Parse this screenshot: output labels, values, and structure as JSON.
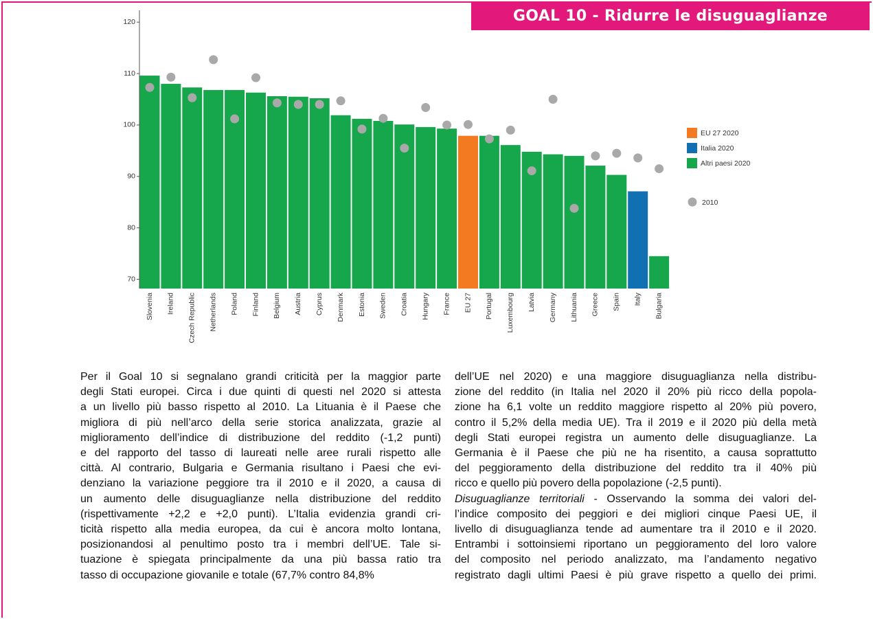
{
  "header": {
    "title": "GOAL 10 - Ridurre le disuguaglianze"
  },
  "chart_data": {
    "type": "bar",
    "categories": [
      "Slovenia",
      "Ireland",
      "Czech Republic",
      "Netherlands",
      "Poland",
      "Finland",
      "Belgium",
      "Austria",
      "Cyprus",
      "Denmark",
      "Estonia",
      "Sweden",
      "Croatia",
      "Hungary",
      "France",
      "EU 27",
      "Portugal",
      "Luxembourg",
      "Latvia",
      "Germany",
      "Lithuania",
      "Greece",
      "Spain",
      "Italy",
      "Bulgaria"
    ],
    "bars": {
      "values": [
        109.6,
        108.0,
        107.3,
        106.8,
        106.8,
        106.3,
        105.6,
        105.5,
        105.2,
        101.9,
        101.2,
        100.8,
        100.1,
        99.6,
        99.3,
        97.9,
        97.9,
        96.1,
        94.8,
        94.3,
        94.0,
        92.1,
        90.3,
        87.1,
        74.5
      ],
      "colors": [
        "#16a64c",
        "#16a64c",
        "#16a64c",
        "#16a64c",
        "#16a64c",
        "#16a64c",
        "#16a64c",
        "#16a64c",
        "#16a64c",
        "#16a64c",
        "#16a64c",
        "#16a64c",
        "#16a64c",
        "#16a64c",
        "#16a64c",
        "#f47a21",
        "#16a64c",
        "#16a64c",
        "#16a64c",
        "#16a64c",
        "#16a64c",
        "#16a64c",
        "#16a64c",
        "#1170b1",
        "#16a64c"
      ]
    },
    "points": {
      "name": "2010",
      "color": "#a9a9a9",
      "values": [
        107.3,
        109.3,
        105.3,
        112.7,
        101.2,
        109.2,
        104.3,
        104.0,
        104.0,
        104.7,
        99.2,
        101.3,
        95.5,
        103.4,
        100.0,
        100.1,
        97.3,
        99.0,
        91.1,
        105.0,
        83.8,
        94.0,
        94.5,
        93.6,
        91.5
      ]
    },
    "legend": [
      {
        "name": "EU 27 2020",
        "color": "#f47a21"
      },
      {
        "name": "Italia 2020",
        "color": "#1170b1"
      },
      {
        "name": "Altri paesi 2020",
        "color": "#16a64c"
      }
    ],
    "ylim": [
      68.2,
      122.3
    ],
    "yticks": [
      70,
      80,
      90,
      100,
      110,
      120
    ]
  },
  "text": {
    "left": [
      "Per il Goal 10 si segnalano grandi criticità per la maggior parte",
      "degli Stati europei. Circa i due quinti di questi nel 2020 si attesta",
      "a un livello più basso rispetto al 2010. La Lituania è il Paese che",
      "migliora di più nell’arco della serie storica analizzata, grazie al",
      "miglioramento dell’indice di distribuzione del reddito (-1,2 punti)",
      "e del rapporto del tasso di laureati nelle aree rurali rispetto alle",
      "città. Al contrario, Bulgaria e Germania risultano i Paesi che evi-",
      "denziano la variazione peggiore tra il 2010 e il 2020, a causa di",
      "un aumento delle disuguaglianze nella distribuzione del reddito",
      "(rispettivamente +2,2 e +2,0 punti). L’Italia evidenzia grandi cri-",
      "ticità rispetto alla media europea, da cui è ancora molto lontana,",
      "posizionandosi al penultimo posto tra i membri dell’UE. Tale si-",
      "tuazione è spiegata principalmente da una più bassa ratio tra",
      "tasso di occupazione giovanile e totale (67,7% contro 84,8%"
    ],
    "right": [
      "dell’UE nel 2020) e una maggiore disuguaglianza nella distribu-",
      "zione del reddito (in Italia nel 2020 il 20% più ricco della popola-",
      "zione ha 6,1 volte un reddito maggiore rispetto al 20% più povero,",
      "contro il 5,2% della media UE). Tra il 2019 e il 2020 più della metà",
      "degli Stati europei registra un aumento delle disuguaglianze. La",
      "Germania è il Paese che più ne ha risentito, a causa soprattutto",
      "del peggioramento della distribuzione del reddito tra il 40% più",
      "ricco e quello più povero della popolazione (-2,5 punti)."
    ],
    "right_lead": "Disuguaglianze territoriali",
    "right_after": [
      " - Osservando la somma dei valori del-",
      "l’indice composito dei peggiori e dei migliori cinque Paesi UE, il",
      "livello di disuguaglianza tende ad aumentare tra il 2010 e il 2020.",
      "Entrambi i sottoinsiemi riportano un peggioramento del loro valore",
      "del composito nel periodo analizzato, ma l’andamento negativo",
      "registrato dagli ultimi Paesi è più grave rispetto a quello dei primi."
    ]
  }
}
